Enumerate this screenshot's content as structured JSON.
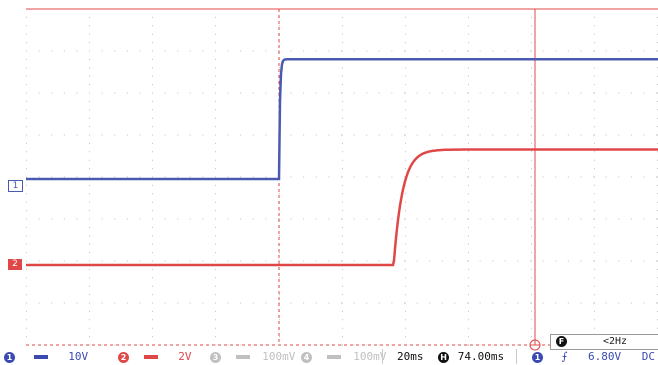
{
  "colors": {
    "ch1": "#4a5ab0",
    "ch2": "#e04848",
    "grid": "#bfbfbf",
    "disabled": "#c0c0c0",
    "text_blue": "#3a4ab0",
    "trigger": "#e04848"
  },
  "channels": [
    {
      "number": "1",
      "scale": "10V",
      "state": "on"
    },
    {
      "number": "2",
      "scale": "2V",
      "state": "on"
    },
    {
      "number": "3",
      "scale": "100mV",
      "state": "off"
    },
    {
      "number": "4",
      "scale": "100mV",
      "state": "off"
    }
  ],
  "markers": {
    "ch1": "1",
    "ch2": "2"
  },
  "timebase": {
    "scale": "20ms",
    "delay_icon": "H",
    "delay": "74.00ms"
  },
  "trigger": {
    "source": "1",
    "slope_icon": "rising-edge-icon",
    "slope": "⨍",
    "level": "6.80V",
    "coupling": "DC"
  },
  "frequency": {
    "icon": "F",
    "value": "<2Hz"
  },
  "waveform": {
    "ch1": {
      "low_v": 0,
      "high_v": 28.5,
      "step_ms": 0,
      "tau_ms": 0.3
    },
    "ch2": {
      "low_v": 0,
      "high_v": 5.5,
      "step_ms": 36.4,
      "tau_ms": 2.8
    },
    "ch1_offset_div": -1,
    "ch2_offset_div": -3
  }
}
